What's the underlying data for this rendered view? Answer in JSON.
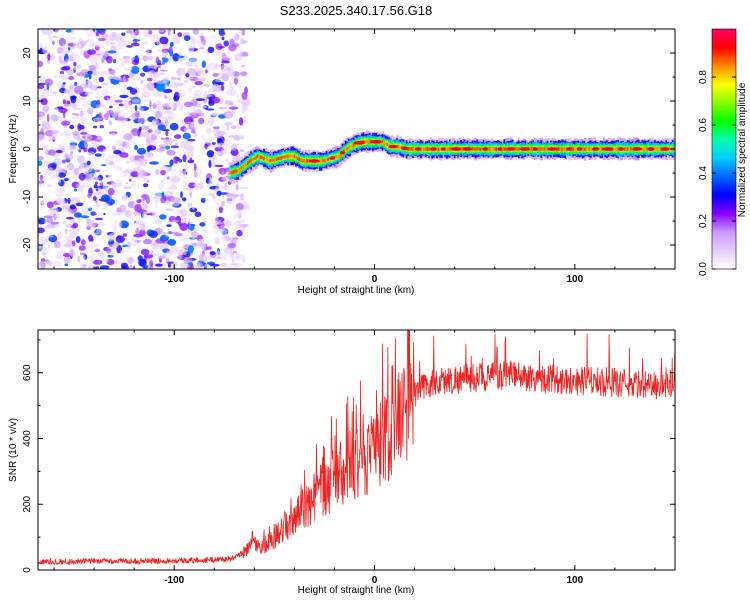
{
  "title": "S233.2025.340.17.56.G18",
  "chart_data": [
    {
      "type": "heatmap",
      "title": "S233.2025.340.17.56.G18",
      "xlabel": "Height of straight line (km)",
      "ylabel": "Frequency (Hz)",
      "xlim": [
        -168,
        150
      ],
      "ylim": [
        -25,
        25
      ],
      "xticks": [
        -100,
        0,
        100
      ],
      "yticks": [
        -20,
        -10,
        0,
        10,
        20
      ],
      "grid": false,
      "noise_region_x": [
        -168,
        -70
      ],
      "ridge": {
        "x": [
          -72,
          -68,
          -62,
          -58,
          -52,
          -48,
          -44,
          -40,
          -36,
          -30,
          -26,
          -22,
          -18,
          -14,
          -10,
          -6,
          -2,
          0,
          4,
          8,
          12,
          16,
          20,
          30,
          40,
          50,
          60,
          70,
          80,
          90,
          100,
          110,
          120,
          130,
          140,
          150
        ],
        "freq": [
          -5,
          -4.5,
          -2.5,
          -1.5,
          -2.5,
          -2,
          -1.5,
          -1.5,
          -2.5,
          -2.5,
          -2.5,
          -2,
          -1.5,
          0,
          1,
          1.5,
          1.5,
          1.5,
          1.5,
          0.5,
          0.5,
          0,
          0,
          0,
          0,
          0,
          0,
          0,
          0,
          0,
          0,
          0,
          0,
          0,
          0,
          0
        ]
      },
      "colorbar": {
        "label": "Normalized spectral amplitude",
        "range": [
          0,
          1
        ],
        "ticks": [
          "0.0",
          "0.2",
          "0.4",
          "0.6",
          "0.8"
        ],
        "colors": [
          "#ffffff",
          "#e6ccff",
          "#cc99ff",
          "#8800ff",
          "#0000ff",
          "#0066ff",
          "#00ccff",
          "#00ffaa",
          "#00ff00",
          "#88ff00",
          "#ffff00",
          "#ff8800",
          "#ff0000",
          "#ff0066"
        ]
      }
    },
    {
      "type": "line",
      "xlabel": "Height of straight line (km)",
      "ylabel": "SNR (10 * v/v)",
      "xlim": [
        -168,
        150
      ],
      "ylim": [
        0,
        730
      ],
      "xticks": [
        -100,
        0,
        100
      ],
      "yticks": [
        0,
        200,
        400,
        600
      ],
      "grid": false,
      "series": [
        {
          "name": "SNR",
          "color": "#ee2222",
          "x": [
            -168,
            -140,
            -110,
            -85,
            -70,
            -64,
            -61,
            -58,
            -55,
            -50,
            -45,
            -40,
            -35,
            -30,
            -25,
            -20,
            -15,
            -10,
            -5,
            0,
            5,
            10,
            15,
            20,
            25,
            30,
            35,
            40,
            50,
            60,
            70,
            80,
            90,
            100,
            110,
            120,
            130,
            140,
            150
          ],
          "values": [
            25,
            27,
            28,
            30,
            35,
            60,
            100,
            60,
            75,
            100,
            130,
            160,
            190,
            220,
            250,
            280,
            300,
            320,
            340,
            360,
            390,
            420,
            480,
            540,
            560,
            570,
            575,
            580,
            585,
            590,
            590,
            585,
            580,
            575,
            575,
            570,
            565,
            560,
            565
          ]
        }
      ]
    }
  ]
}
